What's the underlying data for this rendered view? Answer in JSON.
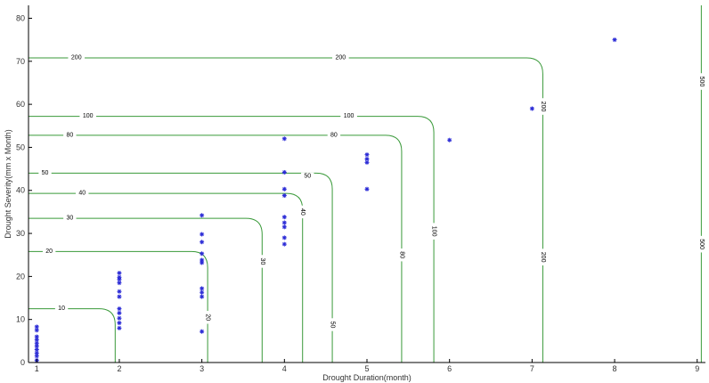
{
  "chart_data": {
    "type": "scatter",
    "title": "",
    "xlabel": "Drought Duration(month)",
    "ylabel": "Drought Severity(mm x Month)",
    "xlim": [
      0.9,
      9.1
    ],
    "ylim": [
      0,
      83
    ],
    "xticks": [
      1,
      2,
      3,
      4,
      5,
      6,
      7,
      8,
      9
    ],
    "yticks": [
      0,
      10,
      20,
      30,
      40,
      50,
      60,
      70,
      80
    ],
    "grid": false,
    "legend": "none",
    "colors": {
      "points": "#2b2bd6",
      "contours": "#3a9a3a"
    },
    "series": [
      {
        "marker": "*",
        "points": [
          [
            1,
            0.5
          ],
          [
            1,
            1.5
          ],
          [
            1,
            2.2
          ],
          [
            1,
            3.0
          ],
          [
            1,
            3.8
          ],
          [
            1,
            4.5
          ],
          [
            1,
            5.3
          ],
          [
            1,
            6.0
          ],
          [
            1,
            7.5
          ],
          [
            1,
            8.3
          ],
          [
            2,
            8.0
          ],
          [
            2,
            9.2
          ],
          [
            2,
            10.3
          ],
          [
            2,
            11.5
          ],
          [
            2,
            12.5
          ],
          [
            2,
            15.3
          ],
          [
            2,
            16.5
          ],
          [
            2,
            18.5
          ],
          [
            2,
            19.3
          ],
          [
            2,
            19.8
          ],
          [
            2,
            20.8
          ],
          [
            3,
            7.2
          ],
          [
            3,
            15.3
          ],
          [
            3,
            16.3
          ],
          [
            3,
            17.2
          ],
          [
            3,
            23.2
          ],
          [
            3,
            23.8
          ],
          [
            3,
            25.3
          ],
          [
            3,
            28.0
          ],
          [
            3,
            29.8
          ],
          [
            3,
            34.2
          ],
          [
            4,
            27.5
          ],
          [
            4,
            29.0
          ],
          [
            4,
            31.5
          ],
          [
            4,
            32.5
          ],
          [
            4,
            33.8
          ],
          [
            4,
            38.8
          ],
          [
            4,
            40.3
          ],
          [
            4,
            44.2
          ],
          [
            4,
            52.0
          ],
          [
            5,
            40.3
          ],
          [
            5,
            46.5
          ],
          [
            5,
            47.3
          ],
          [
            5,
            48.3
          ],
          [
            6,
            51.7
          ],
          [
            7,
            59.0
          ],
          [
            8,
            75.0
          ]
        ]
      }
    ],
    "contours": [
      {
        "label": "10",
        "y": 12.5,
        "x": 1.95,
        "label_pos": [
          1.3,
          12.5
        ]
      },
      {
        "label": "20",
        "y": 25.8,
        "x": 3.07,
        "label_pos": [
          1.15,
          25.8
        ],
        "label_pos2": [
          3.07,
          10.5
        ]
      },
      {
        "label": "30",
        "y": 33.5,
        "x": 3.73,
        "label_pos": [
          1.4,
          33.5
        ],
        "label_pos2": [
          3.73,
          23.5
        ]
      },
      {
        "label": "40",
        "y": 39.3,
        "x": 4.22,
        "label_pos": [
          1.55,
          39.3
        ],
        "label_pos2": [
          4.22,
          35.0
        ]
      },
      {
        "label": "50",
        "y": 44.0,
        "x": 4.58,
        "label_pos": [
          1.1,
          44.0
        ],
        "label_pos2": [
          4.28,
          43.3
        ],
        "label_pos3": [
          4.58,
          8.8
        ]
      },
      {
        "label": "80",
        "y": 52.8,
        "x": 5.42,
        "label_pos": [
          1.4,
          52.8
        ],
        "label_pos2": [
          4.6,
          52.8
        ],
        "label_pos3": [
          5.42,
          25.0
        ]
      },
      {
        "label": "100",
        "y": 57.2,
        "x": 5.81,
        "label_pos": [
          1.62,
          57.2
        ],
        "label_pos2": [
          4.78,
          57.2
        ],
        "label_pos3": [
          5.81,
          30.5
        ]
      },
      {
        "label": "200",
        "y": 70.8,
        "x": 7.13,
        "label_pos": [
          1.48,
          70.8
        ],
        "label_pos2": [
          4.68,
          70.8
        ],
        "label_pos3": [
          7.13,
          59.5
        ],
        "label_pos4": [
          7.13,
          24.5
        ]
      },
      {
        "label": "500",
        "y": 83,
        "x": 9.05,
        "label_pos": [
          9.05,
          65.3
        ],
        "label_pos2": [
          9.05,
          27.5
        ]
      }
    ]
  }
}
